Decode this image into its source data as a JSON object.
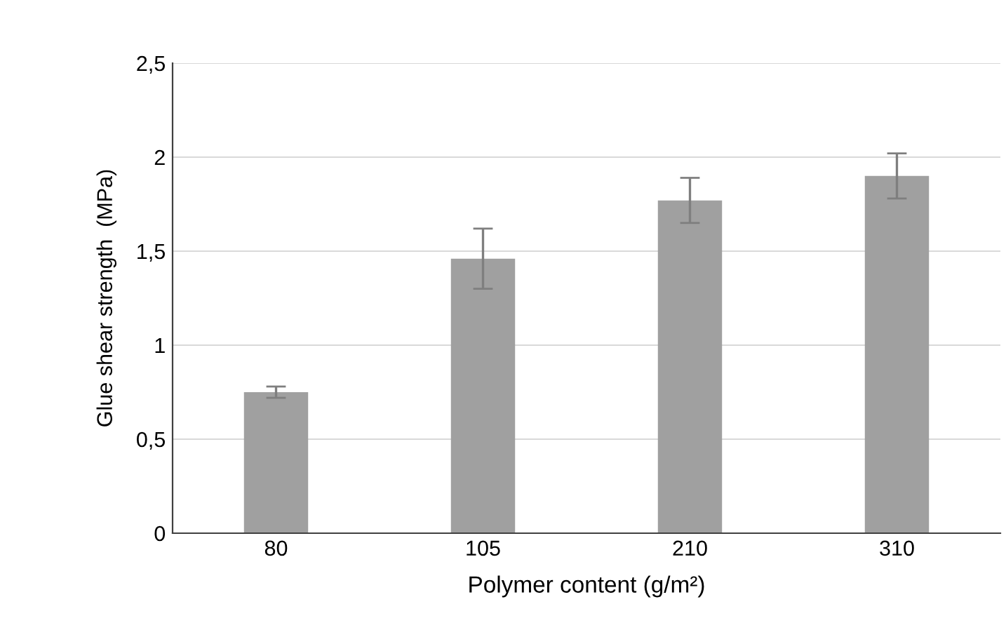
{
  "chart_data": {
    "type": "bar",
    "xlabel": "Polymer content (g/m²)",
    "ylabel": "Glue shear strength  (MPa)",
    "categories": [
      "80",
      "105",
      "210",
      "310"
    ],
    "values": [
      0.75,
      1.46,
      1.77,
      1.9
    ],
    "errors": [
      [
        0.72,
        0.78
      ],
      [
        1.3,
        1.62
      ],
      [
        1.65,
        1.89
      ],
      [
        1.78,
        2.02
      ]
    ],
    "color": "#a0a0a0",
    "ylim": [
      0,
      2.5
    ],
    "yticks": [
      0,
      {
        "value": 0.5,
        "label": "0,5"
      },
      1,
      {
        "value": 1.5,
        "label": "1,5"
      },
      2,
      {
        "value": 2.5,
        "label": "2,5"
      }
    ],
    "grid": "y"
  }
}
